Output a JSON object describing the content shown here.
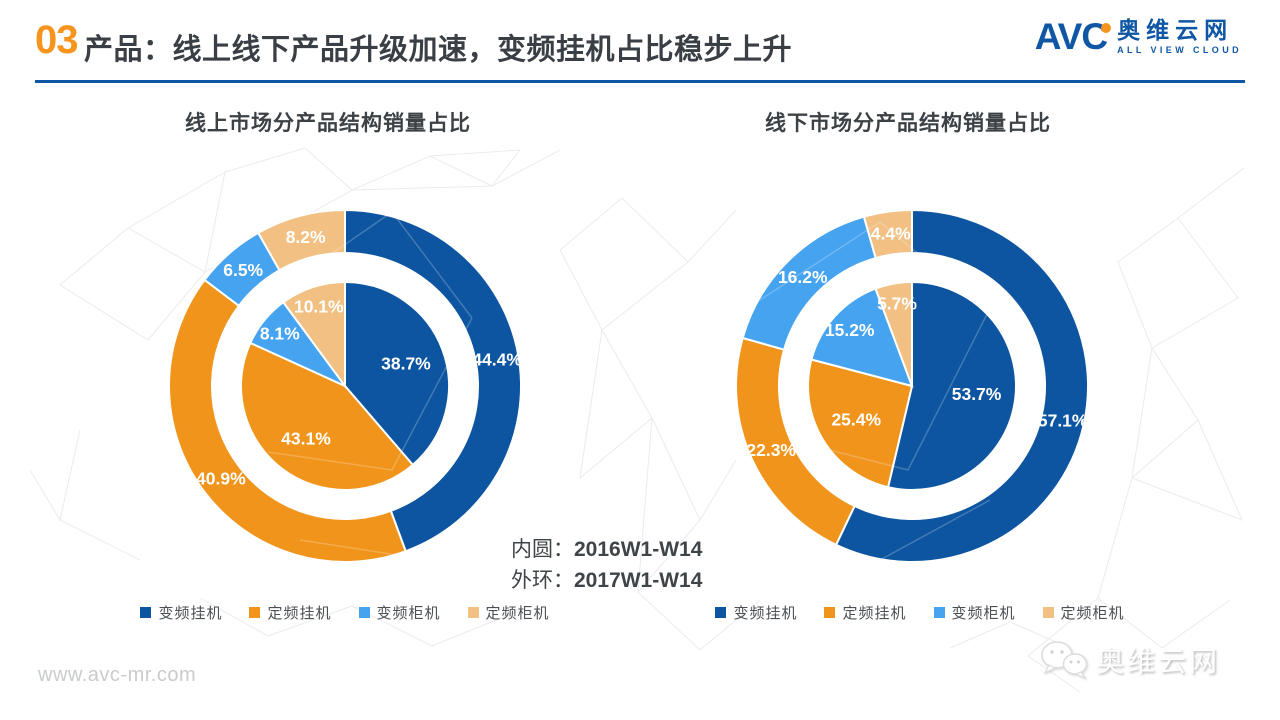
{
  "header": {
    "section_number": "03",
    "title": "产品：线上线下产品升级加速，变频挂机占比稳步上升",
    "logo": {
      "abbr": "AVC",
      "cn": "奥维云网",
      "en": "ALL VIEW CLOUD"
    }
  },
  "colors": {
    "accent_orange": "#F7941E",
    "brand_blue": "#0F57A4",
    "title_gray": "#3A3F45",
    "series": [
      "#0D55A0",
      "#F0941C",
      "#46A3F0",
      "#F2C083"
    ]
  },
  "legend": [
    "变频挂机",
    "定频挂机",
    "变频柜机",
    "定频柜机"
  ],
  "note": {
    "line1_label": "内圆：",
    "line1_value": "2016W1-W14",
    "line2_label": "外环：",
    "line2_value": "2017W1-W14"
  },
  "chart_data": [
    {
      "type": "donut",
      "title": "线上市场分产品结构销量占比",
      "categories": [
        "变频挂机",
        "定频挂机",
        "变频柜机",
        "定频柜机"
      ],
      "series": [
        {
          "name": "内圆 2016W1-W14",
          "ring": "inner",
          "values": [
            38.7,
            43.1,
            8.1,
            10.1
          ]
        },
        {
          "name": "外环 2017W1-W14",
          "ring": "outer",
          "values": [
            44.4,
            40.9,
            6.5,
            8.2
          ]
        }
      ],
      "legend_position": "bottom",
      "label_format": "percent"
    },
    {
      "type": "donut",
      "title": "线下市场分产品结构销量占比",
      "categories": [
        "变频挂机",
        "定频挂机",
        "变频柜机",
        "定频柜机"
      ],
      "series": [
        {
          "name": "内圆 2016W1-W14",
          "ring": "inner",
          "values": [
            53.7,
            25.4,
            15.2,
            5.7
          ]
        },
        {
          "name": "外环 2017W1-W14",
          "ring": "outer",
          "values": [
            57.1,
            22.3,
            16.2,
            4.4
          ]
        }
      ],
      "legend_position": "bottom",
      "label_format": "percent"
    }
  ],
  "footer": {
    "url": "www.avc-mr.com",
    "watermark": "奥维云网"
  }
}
